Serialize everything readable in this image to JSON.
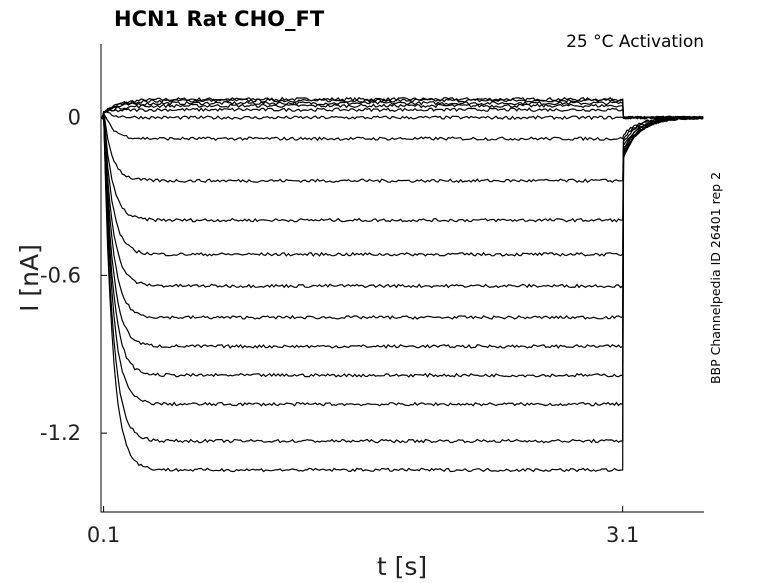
{
  "chart_data": {
    "type": "line",
    "title": "HCN1  Rat  CHO_FT",
    "annotation": "25 °C  Activation",
    "side_label": "BBP Channelpedia ID 26401 rep 2",
    "xlabel": "t [s]",
    "ylabel": "I [nA]",
    "xlim": [
      0.085,
      3.57
    ],
    "ylim": [
      -1.5,
      0.28
    ],
    "x_ticks": [
      0.1,
      3.1
    ],
    "x_tick_labels": [
      "0.1",
      "3.1"
    ],
    "y_ticks": [
      0,
      -0.6,
      -1.2
    ],
    "y_tick_labels": [
      "0",
      "-0.6",
      "-1.2"
    ],
    "grid": false,
    "step_start": 0.1,
    "step_end": 3.1,
    "series": [
      {
        "steady_state": 0.07
      },
      {
        "steady_state": 0.065
      },
      {
        "steady_state": 0.055
      },
      {
        "steady_state": 0.045
      },
      {
        "steady_state": 0.03
      },
      {
        "steady_state": 0.0
      },
      {
        "steady_state": -0.08
      },
      {
        "steady_state": -0.24
      },
      {
        "steady_state": -0.39
      },
      {
        "steady_state": -0.52
      },
      {
        "steady_state": -0.64
      },
      {
        "steady_state": -0.76
      },
      {
        "steady_state": -0.87
      },
      {
        "steady_state": -0.98
      },
      {
        "steady_state": -1.09
      },
      {
        "steady_state": -1.23
      },
      {
        "steady_state": -1.34
      }
    ]
  }
}
